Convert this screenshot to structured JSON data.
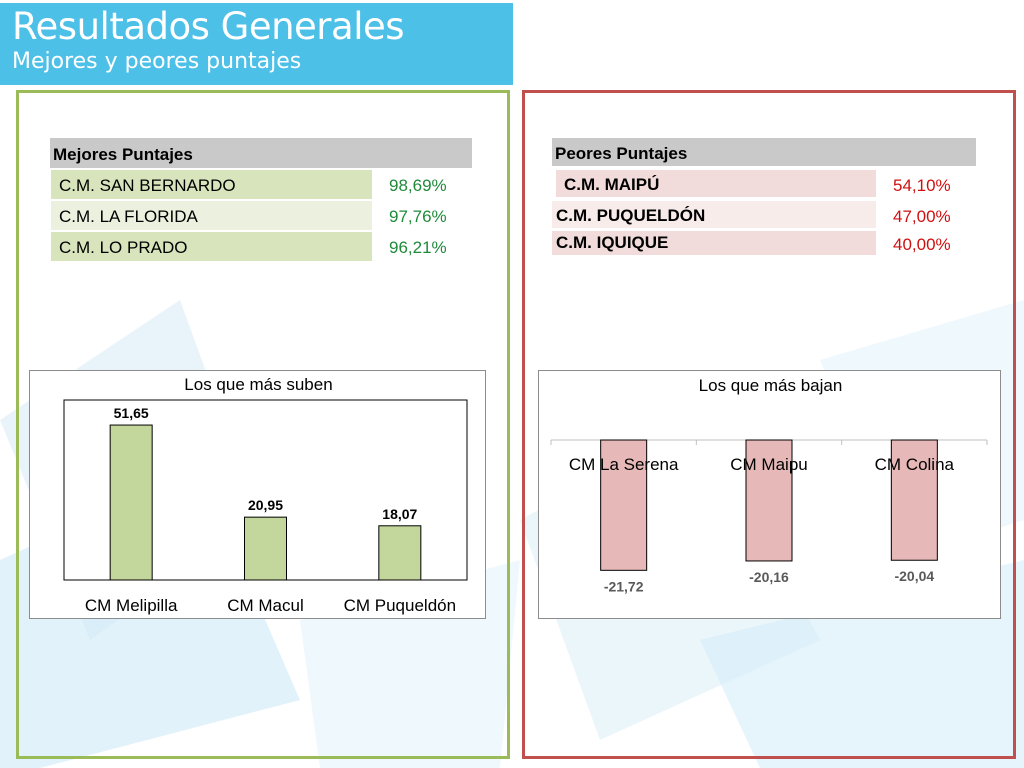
{
  "header": {
    "title": "Resultados Generales",
    "subtitle": "Mejores y peores puntajes"
  },
  "colors": {
    "accent": "#4dc0e8",
    "best_frame": "#9bbb59",
    "worst_frame": "#c0504d",
    "best_bar": "#c3d69b",
    "worst_bar": "#e6b9b8",
    "best_value_text": "#1f8a3a",
    "worst_value_text": "#d01010"
  },
  "best_table": {
    "header": "Mejores Puntajes",
    "rows": [
      {
        "name": "C.M. SAN BERNARDO",
        "value": "98,69%"
      },
      {
        "name": "C.M. LA FLORIDA",
        "value": "97,76%"
      },
      {
        "name": "C.M. LO PRADO",
        "value": "96,21%"
      }
    ]
  },
  "worst_table": {
    "header": "Peores Puntajes",
    "rows": [
      {
        "name": "C.M. MAIPÚ",
        "value": "54,10%"
      },
      {
        "name": "C.M. PUQUELDÓN",
        "value": "47,00%"
      },
      {
        "name": "C.M. IQUIQUE",
        "value": "40,00%"
      }
    ]
  },
  "chart_data": [
    {
      "type": "bar",
      "title": "Los que más suben",
      "categories": [
        "CM Melipilla",
        "CM Macul",
        "CM Puqueldón"
      ],
      "values": [
        51.65,
        20.95,
        18.07
      ],
      "value_labels": [
        "51,65",
        "20,95",
        "18,07"
      ],
      "ylim": [
        0,
        60
      ],
      "xlabel": "",
      "ylabel": "",
      "grid": false
    },
    {
      "type": "bar",
      "title": "Los que más bajan",
      "categories": [
        "CM La Serena",
        "CM Maipu",
        "CM Colina"
      ],
      "values": [
        -21.72,
        -20.16,
        -20.04
      ],
      "value_labels": [
        "-21,72",
        "-20,16",
        "-20,04"
      ],
      "ylim": [
        -25,
        0
      ],
      "xlabel": "",
      "ylabel": "",
      "grid": true
    }
  ]
}
